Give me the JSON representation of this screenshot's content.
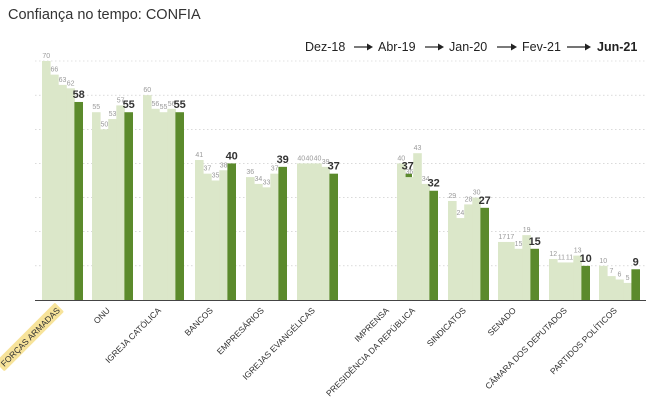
{
  "chart_data": {
    "type": "bar",
    "title": "Confiança no tempo: CONFIA",
    "legend": [
      "Dez-18",
      "Abr-19",
      "Jan-20",
      "Fev-21",
      "Jun-21"
    ],
    "legend_placement": "top-right",
    "categories": [
      "FORÇAS ARMADAS",
      "ONU",
      "IGREJA CATÓLICA",
      "BANCOS",
      "EMPRESÁRIOS",
      "IGREJAS EVANGÉLICAS",
      "IMPRENSA",
      "PRESIDÊNCIA DA REPÚBLICA",
      "SINDICATOS",
      "SENADO",
      "CÂMARA DOS DEPUTADOS",
      "PARTIDOS POLÍTICOS"
    ],
    "series": [
      {
        "name": "Dez-18",
        "values": [
          70,
          55,
          60,
          41,
          36,
          40,
          null,
          40,
          29,
          17,
          12,
          10
        ]
      },
      {
        "name": "Abr-19",
        "values": [
          66,
          50,
          56,
          37,
          34,
          40,
          null,
          36,
          24,
          17,
          11,
          7
        ]
      },
      {
        "name": "Jan-20",
        "values": [
          63,
          53,
          55,
          35,
          33,
          40,
          null,
          43,
          28,
          15,
          11,
          6
        ]
      },
      {
        "name": "Fev-21",
        "values": [
          62,
          57,
          56,
          38,
          37,
          39,
          null,
          34,
          30,
          19,
          13,
          5
        ]
      },
      {
        "name": "Jun-21",
        "values": [
          58,
          55,
          55,
          40,
          39,
          37,
          37,
          32,
          27,
          15,
          10,
          9
        ]
      }
    ],
    "ylim": [
      0,
      70
    ],
    "grid": true,
    "colors": {
      "history": "#dbe7c9",
      "final": "#5b8a2c",
      "highlight": "#f7e39a"
    }
  }
}
